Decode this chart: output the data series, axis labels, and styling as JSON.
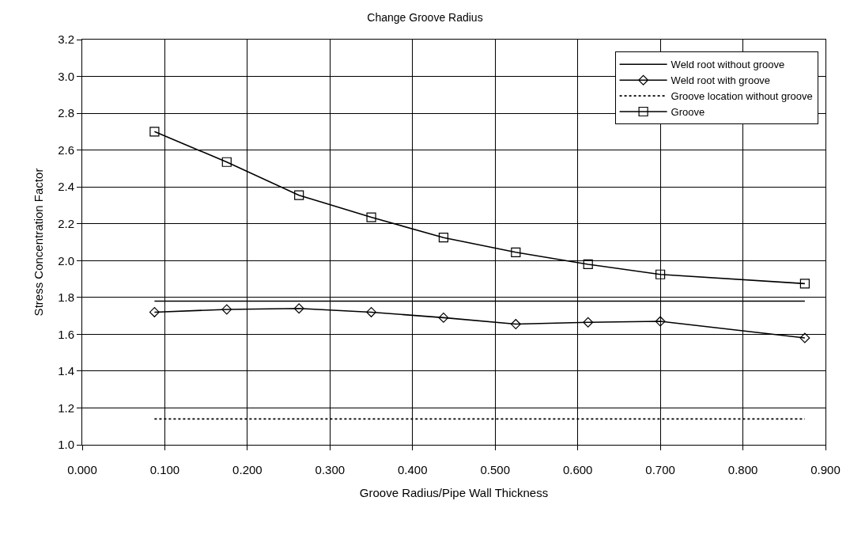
{
  "chart_data": {
    "type": "line",
    "title": "Change Groove Radius",
    "xlabel": "Groove Radius/Pipe Wall Thickness",
    "ylabel": "Stress Concentration Factor",
    "series": [
      {
        "name": "Weld root without groove",
        "color": "#000000",
        "x": [
          0.0875,
          0.875
        ],
        "values": [
          1.78,
          1.78
        ],
        "marker": "none",
        "line_style": "solid"
      },
      {
        "name": "Weld root with groove",
        "color": "#000000",
        "x": [
          0.0875,
          0.175,
          0.2625,
          0.35,
          0.4375,
          0.525,
          0.6125,
          0.7,
          0.875
        ],
        "values": [
          1.72,
          1.735,
          1.74,
          1.72,
          1.69,
          1.655,
          1.665,
          1.67,
          1.58
        ],
        "marker": "diamond",
        "line_style": "solid"
      },
      {
        "name": "Groove location without groove",
        "color": "#000000",
        "x": [
          0.0875,
          0.875
        ],
        "values": [
          1.14,
          1.14
        ],
        "marker": "none",
        "line_style": "dotted"
      },
      {
        "name": "Groove",
        "color": "#000000",
        "x": [
          0.0875,
          0.175,
          0.2625,
          0.35,
          0.4375,
          0.525,
          0.6125,
          0.7,
          0.875
        ],
        "values": [
          2.7,
          2.535,
          2.355,
          2.235,
          2.125,
          2.045,
          1.98,
          1.925,
          1.875
        ],
        "marker": "square",
        "line_style": "solid"
      }
    ],
    "xlim": [
      0,
      0.9
    ],
    "xticks": [
      {
        "value": 0,
        "label": "0.000"
      },
      {
        "value": 0.1,
        "label": "0.100"
      },
      {
        "value": 0.2,
        "label": "0.200"
      },
      {
        "value": 0.3,
        "label": "0.300"
      },
      {
        "value": 0.4,
        "label": "0.400"
      },
      {
        "value": 0.5,
        "label": "0.500"
      },
      {
        "value": 0.6,
        "label": "0.600"
      },
      {
        "value": 0.7,
        "label": "0.700"
      },
      {
        "value": 0.8,
        "label": "0.800"
      },
      {
        "value": 0.9,
        "label": "0.900"
      }
    ],
    "ylim": [
      1.0,
      3.2
    ],
    "yticks": [
      {
        "value": 1,
        "label": "1.0"
      },
      {
        "value": 1.2,
        "label": "1.2"
      },
      {
        "value": 1.4,
        "label": "1.4"
      },
      {
        "value": 1.6,
        "label": "1.6"
      },
      {
        "value": 1.8,
        "label": "1.8"
      },
      {
        "value": 2,
        "label": "2.0"
      },
      {
        "value": 2.2,
        "label": "2.2"
      },
      {
        "value": 2.4,
        "label": "2.4"
      },
      {
        "value": 2.6,
        "label": "2.6"
      },
      {
        "value": 2.8,
        "label": "2.8"
      },
      {
        "value": 3,
        "label": "3.0"
      },
      {
        "value": 3.2,
        "label": "3.2"
      }
    ],
    "grid": true,
    "legend": "top right"
  }
}
